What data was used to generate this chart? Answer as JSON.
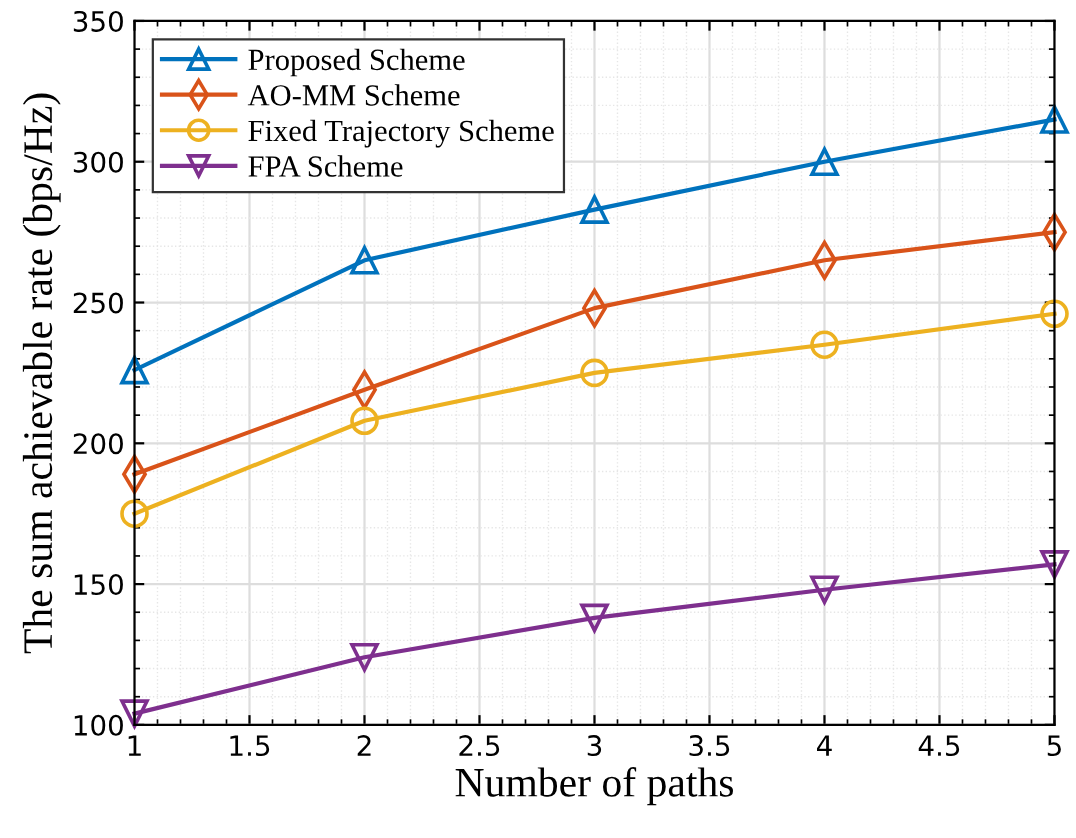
{
  "chart_data": {
    "type": "line",
    "xlabel": "Number of paths",
    "ylabel": "The sum achievable rate (bps/Hz)",
    "x": [
      1,
      2,
      3,
      4,
      5
    ],
    "series": [
      {
        "name": "Proposed Scheme",
        "color": "#0072bd",
        "marker": "triangle",
        "values": [
          226,
          265,
          283,
          300,
          315
        ]
      },
      {
        "name": "AO-MM Scheme",
        "color": "#d95319",
        "marker": "diamond",
        "values": [
          189,
          219,
          248,
          265,
          275
        ]
      },
      {
        "name": "Fixed Trajectory Scheme",
        "color": "#edb120",
        "marker": "circle",
        "values": [
          175,
          208,
          225,
          235,
          246
        ]
      },
      {
        "name": "FPA Scheme",
        "color": "#7e2f8e",
        "marker": "triangle_down",
        "values": [
          104,
          124,
          138,
          148,
          157
        ]
      }
    ],
    "xlim": [
      1,
      5
    ],
    "xticks": [
      1,
      1.5,
      2,
      2.5,
      3,
      3.5,
      4,
      4.5,
      5
    ],
    "ylim": [
      100,
      350
    ],
    "yticks": [
      100,
      150,
      200,
      250,
      300,
      350
    ],
    "grid": true,
    "legend": "top left"
  }
}
